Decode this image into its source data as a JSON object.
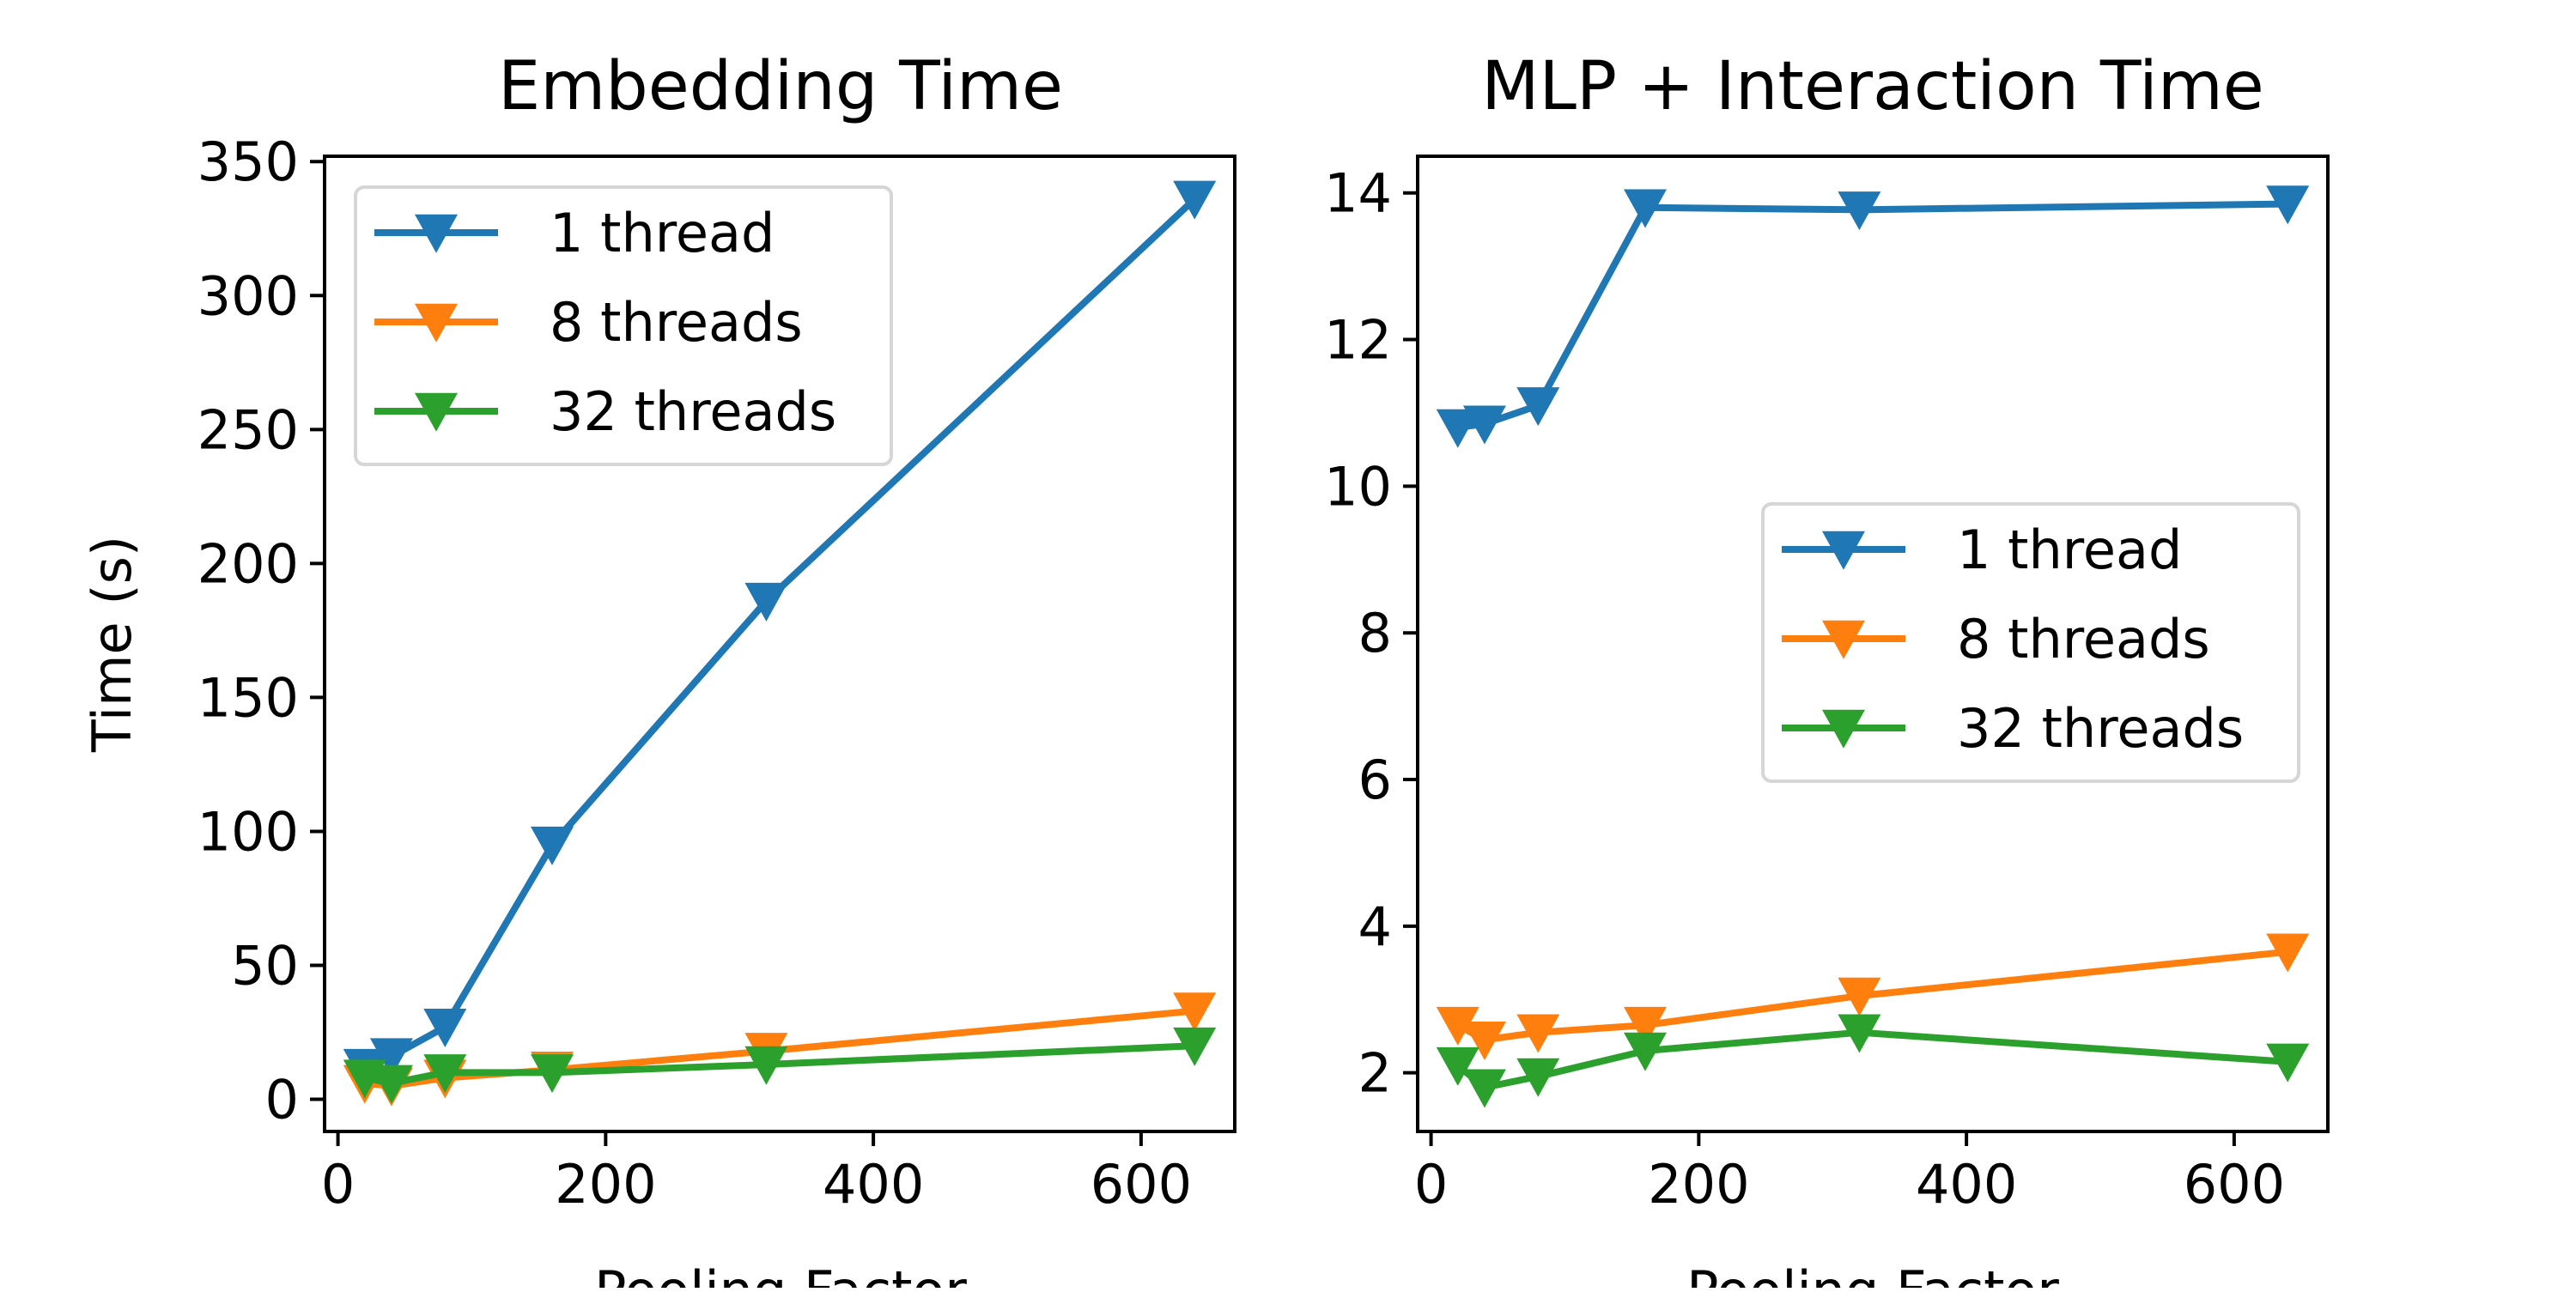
{
  "chart_data": [
    {
      "type": "line",
      "title": "Embedding Time",
      "xlabel": "Pooling Factor",
      "ylabel": "Time (s)",
      "xlim": [
        -10,
        670
      ],
      "ylim": [
        -12,
        352
      ],
      "xticks": [
        0,
        200,
        400,
        600
      ],
      "yticks": [
        0,
        50,
        100,
        150,
        200,
        250,
        300,
        350
      ],
      "grid": false,
      "legend_position": "upper-left",
      "x": [
        20,
        40,
        80,
        160,
        320,
        640
      ],
      "series": [
        {
          "name": "1 thread",
          "color": "#1f77b4",
          "marker": "triangle-down",
          "values": [
            12,
            16,
            27,
            95,
            186,
            336
          ]
        },
        {
          "name": "8 threads",
          "color": "#ff7f0e",
          "marker": "triangle-down",
          "values": [
            6,
            5,
            8,
            11,
            18,
            33
          ]
        },
        {
          "name": "32 threads",
          "color": "#2ca02c",
          "marker": "triangle-down",
          "values": [
            8,
            6,
            10,
            10,
            13,
            20
          ]
        }
      ]
    },
    {
      "type": "line",
      "title": "MLP + Interaction Time",
      "xlabel": "Pooling Factor",
      "ylabel": "",
      "xlim": [
        -10,
        670
      ],
      "ylim": [
        1.2,
        14.5
      ],
      "xticks": [
        0,
        200,
        400,
        600
      ],
      "yticks": [
        2,
        4,
        6,
        8,
        10,
        12,
        14
      ],
      "grid": false,
      "legend_position": "center-right",
      "x": [
        20,
        40,
        80,
        160,
        320,
        640
      ],
      "series": [
        {
          "name": "1 thread",
          "color": "#1f77b4",
          "marker": "triangle-down",
          "values": [
            10.8,
            10.85,
            11.1,
            13.8,
            13.77,
            13.85
          ]
        },
        {
          "name": "8 threads",
          "color": "#ff7f0e",
          "marker": "triangle-down",
          "values": [
            2.65,
            2.45,
            2.55,
            2.65,
            3.05,
            3.65
          ]
        },
        {
          "name": "32 threads",
          "color": "#2ca02c",
          "marker": "triangle-down",
          "values": [
            2.1,
            1.8,
            1.95,
            2.3,
            2.55,
            2.15
          ]
        }
      ]
    }
  ]
}
